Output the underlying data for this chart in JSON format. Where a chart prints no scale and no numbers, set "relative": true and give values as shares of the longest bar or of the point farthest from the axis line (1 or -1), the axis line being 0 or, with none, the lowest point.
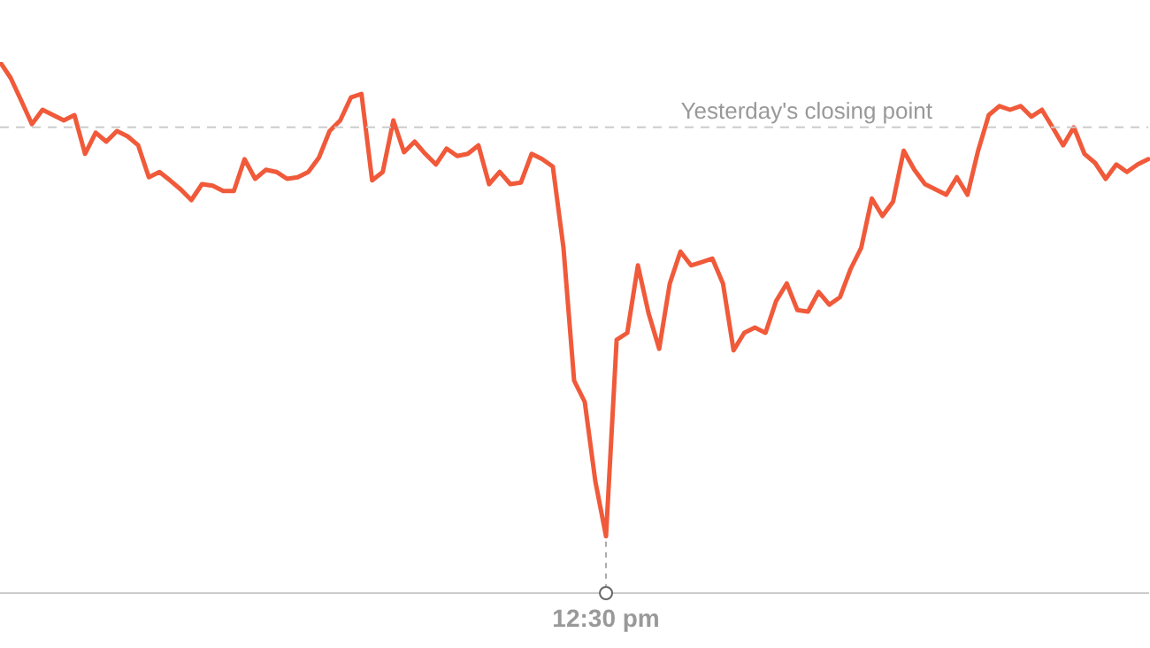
{
  "chart_data": {
    "type": "line",
    "relative": true,
    "legend": false,
    "marker": "none",
    "line_style": "solid",
    "categories": [
      null,
      null,
      null,
      null,
      null,
      null,
      null,
      null,
      null,
      null,
      null,
      null,
      null,
      null,
      null,
      null,
      null,
      null,
      null,
      null,
      null,
      null,
      null,
      null,
      null,
      null,
      null,
      null,
      null,
      null,
      null,
      null,
      null,
      null,
      null,
      null,
      null,
      null,
      null,
      null,
      null,
      null,
      null,
      null,
      null,
      null,
      null,
      null,
      null,
      null,
      null,
      null,
      null,
      null,
      null,
      null,
      null,
      null,
      null,
      null,
      null,
      null,
      null,
      null,
      null,
      null,
      null,
      null,
      null,
      null,
      null,
      null,
      null,
      null,
      null,
      null,
      null,
      null,
      null,
      null,
      null,
      null,
      null,
      null,
      null,
      null,
      null,
      null,
      null,
      null,
      null,
      null,
      null,
      null,
      null,
      null,
      null,
      null,
      null,
      null,
      null,
      null,
      null,
      null,
      null,
      null,
      null,
      null,
      null
    ],
    "series": [
      {
        "color": "#f05a3a",
        "values": [
          1.0,
          0.97,
          0.927,
          0.883,
          0.91,
          0.9,
          0.89,
          0.9,
          0.827,
          0.867,
          0.85,
          0.87,
          0.86,
          0.843,
          0.783,
          0.793,
          0.777,
          0.76,
          0.74,
          0.77,
          0.767,
          0.757,
          0.757,
          0.817,
          0.78,
          0.797,
          0.793,
          0.78,
          0.783,
          0.793,
          0.82,
          0.87,
          0.89,
          0.933,
          0.94,
          0.777,
          0.793,
          0.89,
          0.83,
          0.85,
          0.827,
          0.807,
          0.837,
          0.823,
          0.827,
          0.843,
          0.77,
          0.793,
          0.77,
          0.773,
          0.827,
          0.817,
          0.803,
          0.65,
          0.4,
          0.36,
          0.21,
          0.107,
          0.477,
          0.49,
          0.617,
          0.527,
          0.46,
          0.583,
          0.643,
          0.617,
          0.623,
          0.63,
          0.583,
          0.457,
          0.49,
          0.5,
          0.49,
          0.55,
          0.583,
          0.533,
          0.53,
          0.567,
          0.543,
          0.557,
          0.61,
          0.65,
          0.743,
          0.71,
          0.737,
          0.833,
          0.797,
          0.77,
          0.76,
          0.75,
          0.783,
          0.75,
          0.833,
          0.9,
          0.917,
          0.91,
          0.917,
          0.897,
          0.91,
          0.877,
          0.843,
          0.877,
          0.827,
          0.81,
          0.78,
          0.807,
          0.793,
          0.807,
          0.817
        ]
      }
    ],
    "annotations": [
      {
        "text": "12:30 pm",
        "y": 0.107
      }
    ],
    "ref_lines": [
      {
        "axis": "y",
        "value": 0.877,
        "label": "Yesterday's closing point",
        "color": "#cccccc",
        "line_style": "dashed"
      }
    ]
  }
}
